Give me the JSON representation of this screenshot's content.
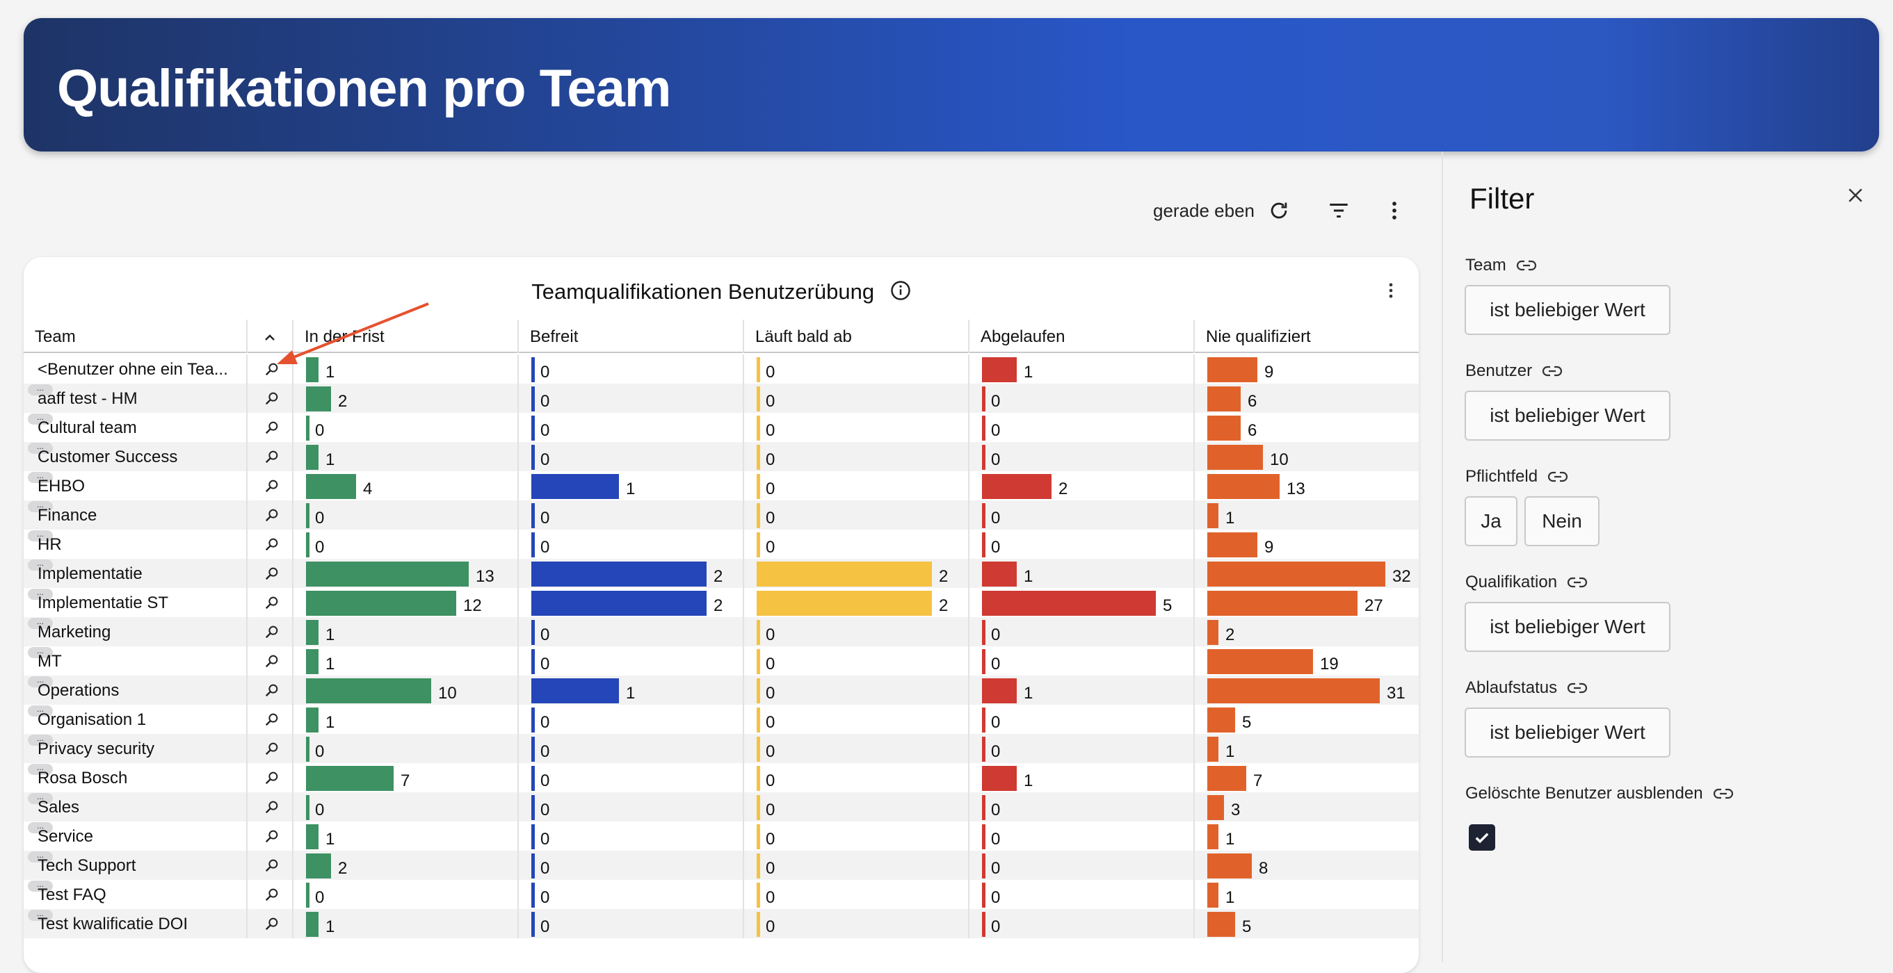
{
  "header": {
    "title": "Qualifikationen pro Team"
  },
  "toolbar": {
    "refresh_time": "gerade eben"
  },
  "card": {
    "title": "Teamqualifikationen Benutzerübung"
  },
  "columns": [
    "Team",
    "In der Frist",
    "Befreit",
    "Läuft bald ab",
    "Abgelaufen",
    "Nie qualifiziert"
  ],
  "colors": {
    "in_frist": "#3d9162",
    "befreit": "#2446b8",
    "laeuft": "#f5c242",
    "abgelaufen": "#cf3a32",
    "nie": "#e0622a"
  },
  "rows": [
    {
      "team": "<Benutzer ohne ein Tea...",
      "pill": false,
      "values": [
        1,
        0,
        0,
        1,
        9
      ]
    },
    {
      "team": "aaff test - HM",
      "pill": true,
      "values": [
        2,
        0,
        0,
        0,
        6
      ]
    },
    {
      "team": "Cultural team",
      "pill": true,
      "values": [
        0,
        0,
        0,
        0,
        6
      ]
    },
    {
      "team": "Customer Success",
      "pill": true,
      "values": [
        1,
        0,
        0,
        0,
        10
      ]
    },
    {
      "team": "EHBO",
      "pill": true,
      "values": [
        4,
        1,
        0,
        2,
        13
      ]
    },
    {
      "team": "Finance",
      "pill": true,
      "values": [
        0,
        0,
        0,
        0,
        1
      ]
    },
    {
      "team": "HR",
      "pill": true,
      "values": [
        0,
        0,
        0,
        0,
        9
      ]
    },
    {
      "team": "Implementatie",
      "pill": true,
      "values": [
        13,
        2,
        2,
        1,
        32
      ]
    },
    {
      "team": "Implementatie ST",
      "pill": true,
      "values": [
        12,
        2,
        2,
        5,
        27
      ]
    },
    {
      "team": "Marketing",
      "pill": true,
      "values": [
        1,
        0,
        0,
        0,
        2
      ]
    },
    {
      "team": "MT",
      "pill": true,
      "values": [
        1,
        0,
        0,
        0,
        19
      ]
    },
    {
      "team": "Operations",
      "pill": true,
      "values": [
        10,
        1,
        0,
        1,
        31
      ]
    },
    {
      "team": "Organisation 1",
      "pill": true,
      "values": [
        1,
        0,
        0,
        0,
        5
      ]
    },
    {
      "team": "Privacy security",
      "pill": true,
      "values": [
        0,
        0,
        0,
        0,
        1
      ]
    },
    {
      "team": "Rosa Bosch",
      "pill": true,
      "values": [
        7,
        0,
        0,
        1,
        7
      ]
    },
    {
      "team": "Sales",
      "pill": true,
      "values": [
        0,
        0,
        0,
        0,
        3
      ]
    },
    {
      "team": "Service",
      "pill": true,
      "values": [
        1,
        0,
        0,
        0,
        1
      ]
    },
    {
      "team": "Tech Support",
      "pill": true,
      "values": [
        2,
        0,
        0,
        0,
        8
      ]
    },
    {
      "team": "Test FAQ",
      "pill": true,
      "values": [
        0,
        0,
        0,
        0,
        1
      ]
    },
    {
      "team": "Test kwalificatie DOI",
      "pill": true,
      "values": [
        1,
        0,
        0,
        0,
        5
      ]
    }
  ],
  "pill_text": "...",
  "filter": {
    "title": "Filter",
    "team_label": "Team",
    "benutzer_label": "Benutzer",
    "pflichtfeld_label": "Pflichtfeld",
    "qualifikation_label": "Qualifikation",
    "ablaufstatus_label": "Ablaufstatus",
    "geloeschte_label": "Gelöschte Benutzer ausblenden",
    "any_value": "ist beliebiger Wert",
    "ja": "Ja",
    "nein": "Nein",
    "geloeschte_checked": true
  }
}
